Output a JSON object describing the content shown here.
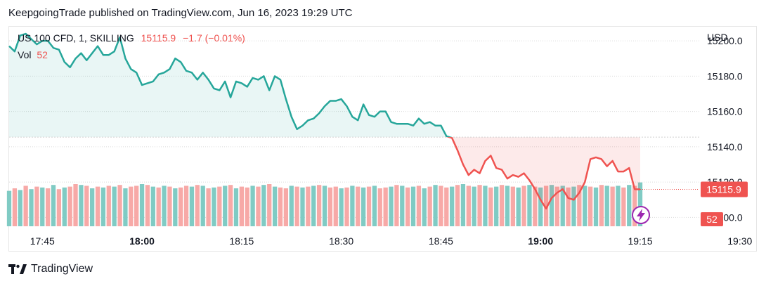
{
  "header": {
    "publisher_line": "KeepgoingTrade published on TradingView.com, Jun 16, 2023 19:29 UTC"
  },
  "legend": {
    "symbol": "US 100 CFD, 1, SKILLING",
    "last_value": "15115.9",
    "change": "−1.7 (−0.01%)",
    "volume_label": "Vol",
    "volume_value": "52"
  },
  "axis": {
    "currency": "USD",
    "price_ticks": [
      "15200.0",
      "15180.0",
      "15160.0",
      "15140.0",
      "15120.0",
      "15100.0"
    ],
    "time_ticks": [
      {
        "label": "17:45",
        "bold": false
      },
      {
        "label": "18:00",
        "bold": true
      },
      {
        "label": "18:15",
        "bold": false
      },
      {
        "label": "18:30",
        "bold": false
      },
      {
        "label": "18:45",
        "bold": false
      },
      {
        "label": "19:00",
        "bold": true
      },
      {
        "label": "19:15",
        "bold": false
      },
      {
        "label": "19:30",
        "bold": false
      }
    ],
    "last_price_label": "15115.9",
    "last_volume_label": "52"
  },
  "footer": {
    "brand": "TradingView"
  },
  "colors": {
    "up": "#26a69a",
    "down": "#ef5350",
    "up_fill": "rgba(38,166,154,0.10)",
    "down_fill": "rgba(239,83,80,0.12)",
    "vol_up": "#80cbc4",
    "vol_down": "#f7a9a7"
  },
  "chart_data": {
    "type": "area",
    "baseline": 15145.5,
    "ylim": [
      15095,
      15208
    ],
    "xlim": [
      0,
      152
    ],
    "time_tick_x": [
      8,
      32,
      56,
      80,
      104,
      128,
      152,
      176
    ],
    "price": [
      15197,
      15194,
      15203,
      15204,
      15201,
      15198,
      15200,
      15200,
      15196,
      15195,
      15188,
      15185,
      15190,
      15193,
      15189,
      15193,
      15197,
      15192,
      15192,
      15194,
      15202,
      15190,
      15184,
      15182,
      15175,
      15176,
      15177,
      15181,
      15182,
      15184,
      15190,
      15188,
      15183,
      15182,
      15178,
      15182,
      15178,
      15173,
      15172,
      15177,
      15168,
      15177,
      15176,
      15174,
      15179,
      15178,
      15180,
      15172,
      15180,
      15178,
      15167,
      15157,
      15150,
      15152,
      15155,
      15156,
      15159,
      15163,
      15166,
      15166,
      15167,
      15163,
      15157,
      15155,
      15164,
      15158,
      15157,
      15160,
      15160,
      15154,
      15153,
      15153,
      15153,
      15152,
      15156,
      15153,
      15154,
      15152,
      15152,
      15146,
      15145,
      15138,
      15130,
      15124,
      15127,
      15125,
      15132,
      15135,
      15128,
      15127,
      15122,
      15124,
      15123,
      15125,
      15121,
      15116,
      15110,
      15105,
      15111,
      15114,
      15116,
      15111,
      15110,
      15114,
      15120,
      15133,
      15134,
      15133,
      15129,
      15132,
      15126,
      15126,
      15128,
      15116,
      15115.9
    ],
    "volume": [
      42,
      45,
      43,
      48,
      44,
      47,
      46,
      45,
      49,
      44,
      46,
      47,
      50,
      49,
      48,
      45,
      47,
      46,
      48,
      47,
      49,
      45,
      47,
      48,
      50,
      49,
      47,
      46,
      48,
      47,
      45,
      46,
      48,
      47,
      49,
      48,
      45,
      46,
      47,
      48,
      49,
      45,
      47,
      46,
      48,
      47,
      49,
      50,
      47,
      46,
      45,
      48,
      47,
      46,
      47,
      48,
      49,
      48,
      46,
      47,
      45,
      46,
      48,
      47,
      46,
      47,
      48,
      45,
      46,
      47,
      49,
      48,
      46,
      47,
      48,
      45,
      47,
      49,
      48,
      46,
      47,
      49,
      50,
      48,
      47,
      49,
      48,
      46,
      47,
      49,
      48,
      47,
      46,
      48,
      49,
      47,
      46,
      48,
      49,
      47,
      48,
      46,
      47,
      49,
      48,
      47,
      46,
      49,
      48,
      47,
      48,
      46,
      49,
      48,
      52
    ],
    "volume_up": [
      true,
      false,
      true,
      false,
      true,
      false,
      true,
      false,
      true,
      false,
      true,
      false,
      false,
      true,
      false,
      true,
      false,
      true,
      false,
      true,
      false,
      true,
      false,
      false,
      true,
      false,
      true,
      false,
      true,
      false,
      true,
      false,
      false,
      true,
      false,
      true,
      false,
      true,
      false,
      true,
      false,
      true,
      false,
      false,
      true,
      false,
      true,
      false,
      true,
      false,
      false,
      true,
      false,
      true,
      false,
      true,
      false,
      true,
      false,
      false,
      true,
      false,
      true,
      false,
      true,
      false,
      true,
      false,
      false,
      true,
      false,
      true,
      false,
      true,
      false,
      true,
      false,
      true,
      false,
      false,
      true,
      false,
      true,
      false,
      true,
      false,
      true,
      false,
      true,
      false,
      true,
      false,
      true,
      false,
      true,
      false,
      true,
      false,
      true,
      false,
      true,
      false,
      true,
      false,
      true,
      false,
      true,
      false,
      true,
      false,
      true,
      false,
      true,
      false,
      true
    ],
    "volume_max": 60
  }
}
